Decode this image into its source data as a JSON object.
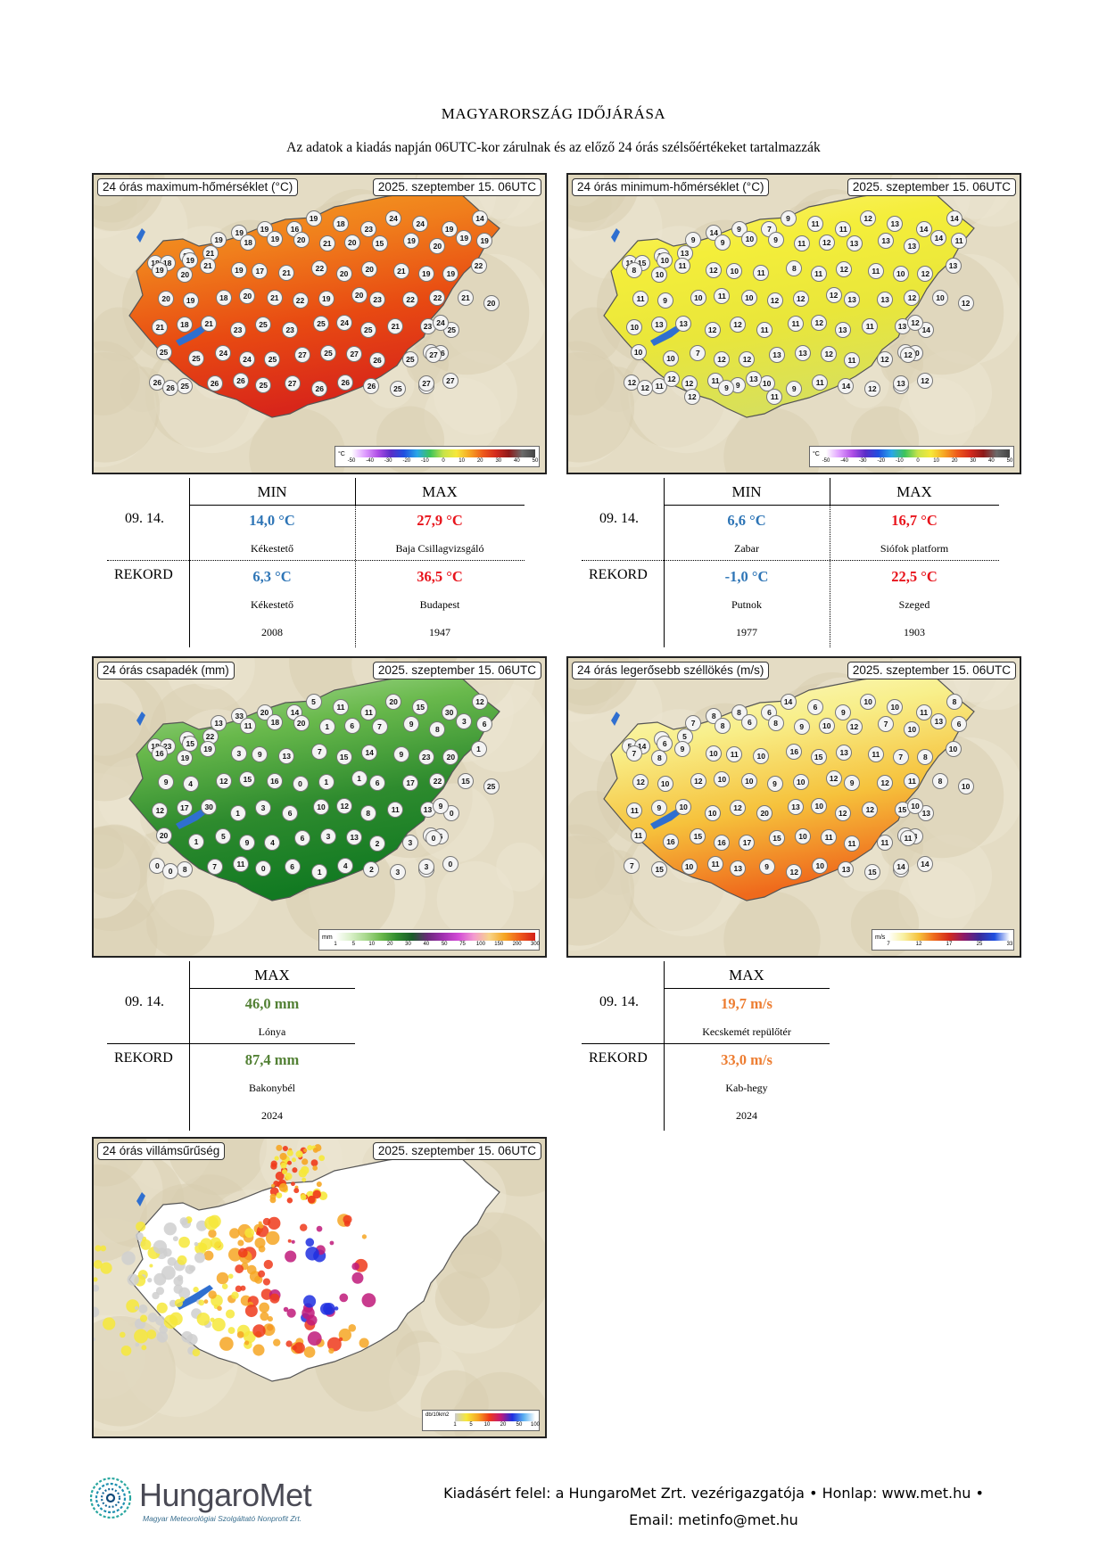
{
  "title": "MAGYARORSZÁG IDŐJÁRÁSA",
  "subtitle": "Az adatok a kiadás napján 06UTC-kor zárulnak és az előző 24 órás szélsőértékeket tartalmazzák",
  "maps": {
    "tmax": {
      "label": "24 órás maximum-hőmérséklet (°C)",
      "date": "2025. szeptember 15. 06UTC",
      "scale_unit": "°C",
      "scale_ticks": [
        "-50",
        "-40",
        "-30",
        "-20",
        "-10",
        "0",
        "10",
        "20",
        "30",
        "40",
        "50"
      ],
      "stations": [
        "18",
        "20",
        "21",
        "19",
        "19",
        "16",
        "19",
        "18",
        "23",
        "24",
        "24",
        "19",
        "14",
        "18",
        "19",
        "19",
        "18",
        "19",
        "20",
        "21",
        "20",
        "15",
        "19",
        "20",
        "19",
        "19",
        "19",
        "20",
        "21",
        "19",
        "17",
        "21",
        "22",
        "20",
        "20",
        "21",
        "19",
        "19",
        "22",
        "20",
        "19",
        "18",
        "20",
        "21",
        "22",
        "19",
        "20",
        "23",
        "22",
        "22",
        "21",
        "20",
        "21",
        "18",
        "21",
        "23",
        "25",
        "23",
        "25",
        "24",
        "25",
        "21",
        "23",
        "25",
        "24",
        "25",
        "25",
        "24",
        "24",
        "25",
        "27",
        "25",
        "27",
        "26",
        "25",
        "25",
        "26",
        "27",
        "26",
        "25",
        "26",
        "26",
        "25",
        "27",
        "26",
        "26",
        "26",
        "25",
        "26",
        "27",
        "27",
        "26"
      ],
      "colors": [
        "#f5a623",
        "#f07f1c",
        "#e84a12",
        "#d8261a"
      ]
    },
    "tmin": {
      "label": "24 órás minimum-hőmérséklet (°C)",
      "date": "2025. szeptember 15. 06UTC",
      "scale_unit": "°C",
      "scale_ticks": [
        "-50",
        "-40",
        "-30",
        "-20",
        "-10",
        "0",
        "10",
        "20",
        "30",
        "40",
        "50"
      ],
      "stations": [
        "11",
        "12",
        "13",
        "14",
        "9",
        "7",
        "9",
        "11",
        "11",
        "12",
        "13",
        "14",
        "14",
        "15",
        "10",
        "9",
        "9",
        "10",
        "9",
        "11",
        "12",
        "13",
        "13",
        "13",
        "14",
        "11",
        "8",
        "10",
        "11",
        "12",
        "10",
        "11",
        "8",
        "11",
        "12",
        "11",
        "10",
        "12",
        "13",
        "11",
        "9",
        "10",
        "11",
        "10",
        "12",
        "12",
        "12",
        "13",
        "13",
        "12",
        "10",
        "12",
        "10",
        "13",
        "13",
        "12",
        "12",
        "11",
        "11",
        "12",
        "13",
        "11",
        "13",
        "14",
        "12",
        "10",
        "10",
        "7",
        "12",
        "12",
        "13",
        "13",
        "12",
        "11",
        "12",
        "9",
        "10",
        "12",
        "12",
        "11",
        "12",
        "11",
        "9",
        "10",
        "9",
        "11",
        "14",
        "12",
        "11",
        "12",
        "13",
        "12",
        "12",
        "12",
        "9",
        "13",
        "11"
      ],
      "colors": [
        "#fff27a",
        "#f4ee3a",
        "#e9e63a",
        "#d8e05a"
      ]
    },
    "precip": {
      "label": "24 órás csapadék (mm)",
      "date": "2025. szeptember 15. 06UTC",
      "scale_unit": "mm",
      "scale_ticks": [
        "1",
        "5",
        "10",
        "20",
        "30",
        "40",
        "50",
        "75",
        "100",
        "150",
        "200",
        "300"
      ],
      "stations": [
        "18",
        "13",
        "22",
        "33",
        "20",
        "14",
        "5",
        "11",
        "11",
        "20",
        "15",
        "30",
        "12",
        "23",
        "15",
        "13",
        "11",
        "18",
        "20",
        "1",
        "6",
        "7",
        "9",
        "8",
        "3",
        "6",
        "16",
        "19",
        "19",
        "3",
        "9",
        "13",
        "7",
        "15",
        "14",
        "9",
        "23",
        "20",
        "1",
        "9",
        "4",
        "12",
        "15",
        "16",
        "0",
        "1",
        "1",
        "6",
        "17",
        "22",
        "15",
        "25",
        "12",
        "17",
        "30",
        "1",
        "3",
        "6",
        "10",
        "12",
        "8",
        "11",
        "13",
        "0",
        "9",
        "20",
        "1",
        "5",
        "9",
        "4",
        "6",
        "3",
        "13",
        "2",
        "3",
        "3",
        "6",
        "0",
        "0",
        "8",
        "7",
        "11",
        "0",
        "6",
        "1",
        "4",
        "2",
        "3",
        "2",
        "0",
        "3",
        "0"
      ],
      "colors": [
        "#b9e3a8",
        "#69b94c",
        "#2e8b2e",
        "#127a22"
      ]
    },
    "wind": {
      "label": "24 órás legerősebb széllökés (m/s)",
      "date": "2025. szeptember 15. 06UTC",
      "scale_unit": "m/s",
      "scale_ticks": [
        "7",
        "12",
        "17",
        "25",
        "33"
      ],
      "stations": [
        "5",
        "9",
        "5",
        "8",
        "8",
        "6",
        "14",
        "6",
        "9",
        "10",
        "10",
        "11",
        "8",
        "14",
        "6",
        "7",
        "8",
        "6",
        "8",
        "9",
        "10",
        "12",
        "7",
        "10",
        "13",
        "6",
        "7",
        "8",
        "9",
        "10",
        "11",
        "10",
        "16",
        "15",
        "13",
        "11",
        "7",
        "8",
        "10",
        "12",
        "10",
        "12",
        "10",
        "10",
        "9",
        "10",
        "12",
        "9",
        "12",
        "11",
        "8",
        "10",
        "11",
        "9",
        "10",
        "10",
        "12",
        "20",
        "13",
        "10",
        "12",
        "12",
        "15",
        "13",
        "10",
        "11",
        "16",
        "15",
        "16",
        "17",
        "15",
        "10",
        "11",
        "11",
        "11",
        "15",
        "8",
        "11",
        "7",
        "15",
        "10",
        "11",
        "13",
        "9",
        "12",
        "10",
        "13",
        "15",
        "16",
        "14",
        "14"
      ],
      "colors": [
        "#fdfbd8",
        "#f8ef8a",
        "#f6c23c",
        "#ef6a1c"
      ]
    },
    "lightning": {
      "label": "24 órás villámsűrűség",
      "date": "2025. szeptember 15. 06UTC",
      "scale_unit": "db/10km2",
      "scale_ticks": [
        "1",
        "5",
        "10",
        "20",
        "50",
        "100"
      ]
    }
  },
  "tables": {
    "tmax_stats": {
      "header_min": "MIN",
      "header_max": "MAX",
      "row1_label": "09. 14.",
      "row1_min": "14,0 °C",
      "row1_min_station": "Kékestető",
      "row1_max": "27,9 °C",
      "row1_max_station": "Baja Csillagvizsgáló",
      "row2_label": "REKORD",
      "row2_min": "6,3 °C",
      "row2_min_station": "Kékestető",
      "row2_min_year": "2008",
      "row2_max": "36,5 °C",
      "row2_max_station": "Budapest",
      "row2_max_year": "1947"
    },
    "tmin_stats": {
      "header_min": "MIN",
      "header_max": "MAX",
      "row1_label": "09. 14.",
      "row1_min": "6,6 °C",
      "row1_min_station": "Zabar",
      "row1_max": "16,7 °C",
      "row1_max_station": "Siófok platform",
      "row2_label": "REKORD",
      "row2_min": "-1,0 °C",
      "row2_min_station": "Putnok",
      "row2_min_year": "1977",
      "row2_max": "22,5 °C",
      "row2_max_station": "Szeged",
      "row2_max_year": "1903"
    },
    "precip_stats": {
      "header_max": "MAX",
      "row1_label": "09. 14.",
      "row1_max": "46,0 mm",
      "row1_max_station": "Lónya",
      "row2_label": "REKORD",
      "row2_max": "87,4 mm",
      "row2_max_station": "Bakonybél",
      "row2_max_year": "2024"
    },
    "wind_stats": {
      "header_max": "MAX",
      "row1_label": "09. 14.",
      "row1_max": "19,7 m/s",
      "row1_max_station": "Kecskemét repülőtér",
      "row2_label": "REKORD",
      "row2_max": "33,0 m/s",
      "row2_max_station": "Kab-hegy",
      "row2_max_year": "2024"
    }
  },
  "footer": {
    "brand": "HungaroMet",
    "tagline": "Magyar Meteorológiai Szolgáltató Nonprofit Zrt.",
    "line1": "Kiadásért felel: a HungaroMet Zrt. vezérigazgatója • Honlap: www.met.hu •",
    "line2": "Email: metinfo@met.hu"
  }
}
